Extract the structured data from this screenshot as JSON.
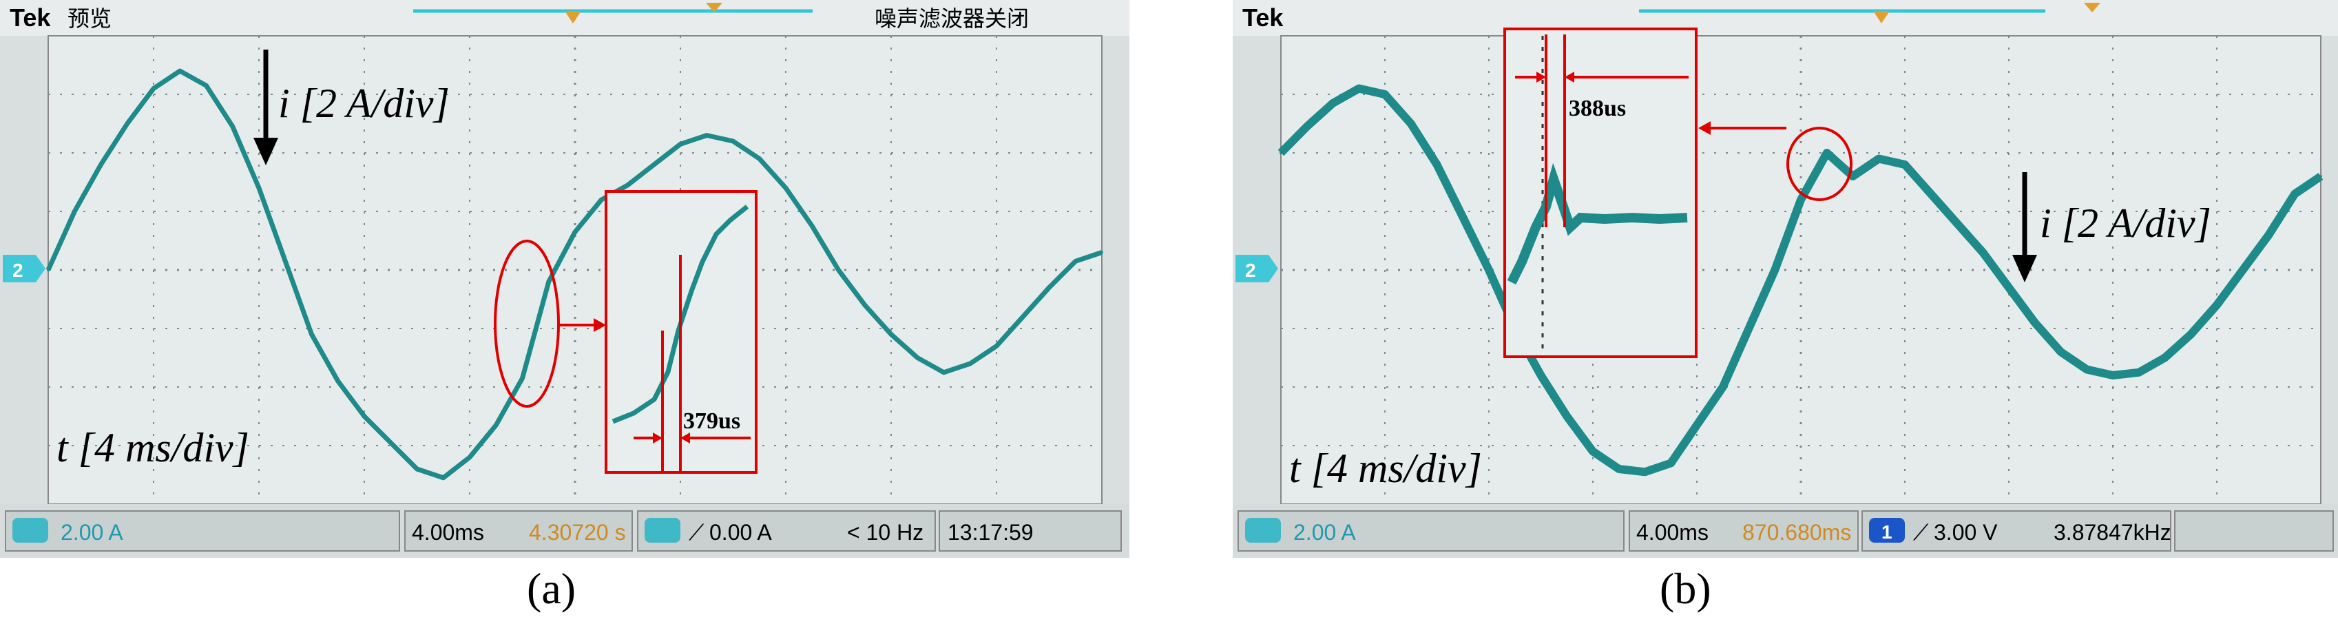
{
  "panels": [
    {
      "id": "a",
      "subfigure_label": "(a)",
      "brand": "Tek",
      "status_left": "预览",
      "status_right": "噪声滤波器关闭",
      "current_scale": "i [2 A/div]",
      "time_scale": "t [4 ms/div]",
      "inset_annotation": "379us",
      "readout": {
        "channel_scale": "2.00 A",
        "timebase": "4.00ms",
        "position": "4.30720 s",
        "trigger": "0.00 A",
        "frequency": "< 10 Hz",
        "clock": "13:17:59"
      },
      "colors": {
        "trace": "#1f8a8a",
        "screen": "#e6ecec",
        "grid": "#7a8a8a",
        "annotation": "#e00000",
        "channel": "#40c8d8"
      }
    },
    {
      "id": "b",
      "subfigure_label": "(b)",
      "brand": "Tek",
      "current_scale": "i [2 A/div]",
      "time_scale": "t [4 ms/div]",
      "inset_annotation": "388us",
      "readout": {
        "channel_scale": "2.00 A",
        "timebase": "4.00ms",
        "position": "870.680ms",
        "trigger": "3.00 V",
        "frequency": "3.87847kHz"
      },
      "colors": {
        "trace": "#1f8a8a",
        "screen": "#e6ecec",
        "grid": "#7a8a8a",
        "annotation": "#e00000",
        "channel": "#40c8d8"
      }
    }
  ],
  "chart_data": [
    {
      "type": "line",
      "title": "",
      "xlabel": "t [4 ms/div]",
      "ylabel": "i [2 A/div]",
      "x_unit": "ms",
      "y_unit": "A",
      "xlim": [
        0,
        40
      ],
      "ylim": [
        -8,
        8
      ],
      "series": [
        {
          "x": [
            0,
            1,
            2,
            3,
            4,
            5,
            6,
            7,
            8,
            9,
            10,
            11,
            12,
            13,
            14,
            15,
            16,
            17,
            18,
            19,
            20,
            21,
            22,
            23,
            24,
            25,
            26,
            27,
            28,
            29,
            30,
            31,
            32,
            33,
            34,
            35,
            36,
            37,
            38,
            39,
            40
          ],
          "y": [
            0.0,
            2.0,
            3.6,
            5.0,
            6.2,
            6.8,
            6.3,
            4.9,
            2.8,
            0.3,
            -2.2,
            -3.8,
            -5.0,
            -5.9,
            -6.8,
            -7.1,
            -6.4,
            -5.3,
            -3.7,
            -0.4,
            1.3,
            2.4,
            2.9,
            3.6,
            4.3,
            4.6,
            4.4,
            3.8,
            2.8,
            1.5,
            0.0,
            -1.2,
            -2.2,
            -3.0,
            -3.5,
            -3.2,
            -2.6,
            -1.6,
            -0.6,
            0.3,
            0.6
          ]
        }
      ]
    },
    {
      "type": "line",
      "title": "",
      "xlabel": "t [4 ms/div]",
      "ylabel": "i [2 A/div]",
      "x_unit": "ms",
      "y_unit": "A",
      "xlim": [
        0,
        40
      ],
      "ylim": [
        -8,
        8
      ],
      "series": [
        {
          "x": [
            0,
            1,
            2,
            3,
            4,
            5,
            6,
            7,
            8,
            9,
            10,
            11,
            12,
            13,
            14,
            15,
            16,
            17,
            18,
            19,
            20,
            21,
            22,
            23,
            24,
            25,
            26,
            27,
            28,
            29,
            30,
            31,
            32,
            33,
            34,
            35,
            36,
            37,
            38,
            39,
            40
          ],
          "y": [
            4.0,
            4.9,
            5.7,
            6.2,
            6.0,
            5.0,
            3.6,
            1.8,
            0.0,
            -2.0,
            -3.6,
            -5.0,
            -6.2,
            -6.8,
            -6.9,
            -6.6,
            -5.3,
            -4.0,
            -2.0,
            0.0,
            2.4,
            4.0,
            3.2,
            3.8,
            3.6,
            2.6,
            1.6,
            0.6,
            -0.6,
            -1.8,
            -2.8,
            -3.4,
            -3.6,
            -3.5,
            -3.0,
            -2.2,
            -1.2,
            0.0,
            1.2,
            2.6,
            3.2
          ]
        }
      ]
    }
  ]
}
